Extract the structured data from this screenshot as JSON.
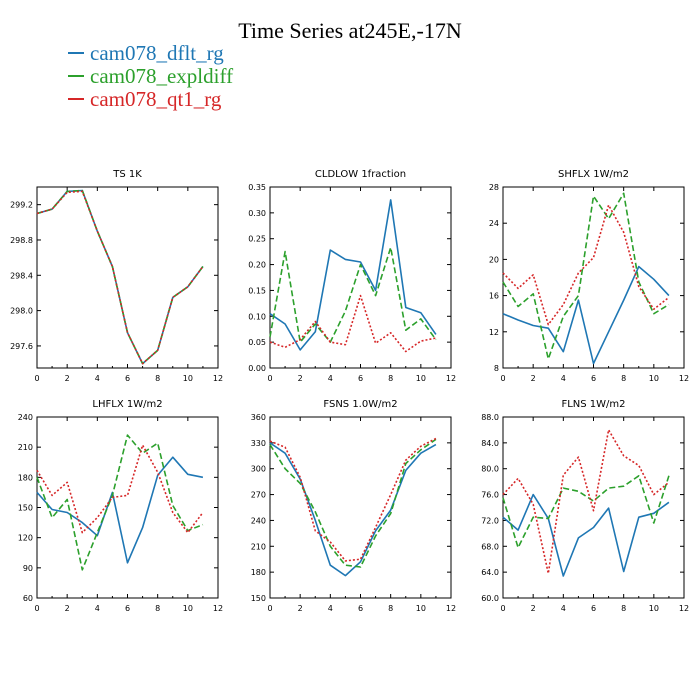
{
  "title": "Time Series at245E,-17N",
  "legend": [
    {
      "name": "cam078_dflt_rg",
      "color": "#1f77b4"
    },
    {
      "name": "cam078_expldiff",
      "color": "#2ca02c"
    },
    {
      "name": "cam078_qt1_rg",
      "color": "#d62728"
    }
  ],
  "chart_data": [
    {
      "type": "line",
      "title": "TS   1K",
      "x": [
        0,
        1,
        2,
        3,
        4,
        5,
        6,
        7,
        8,
        9,
        10,
        11
      ],
      "xlim": [
        0,
        12
      ],
      "xticks": [
        "0",
        "2",
        "4",
        "6",
        "8",
        "10",
        "12"
      ],
      "ylim": [
        297.35,
        299.4
      ],
      "yticks": [
        297.6,
        298.0,
        298.4,
        298.8,
        299.2
      ],
      "ytick_labels": [
        "297.6",
        "298.0",
        "298.4",
        "298.8",
        "299.2"
      ],
      "series": [
        {
          "name": "cam078_dflt_rg",
          "values": [
            299.1,
            299.15,
            299.35,
            299.36,
            298.9,
            298.5,
            297.75,
            297.4,
            297.55,
            298.15,
            298.27,
            298.5
          ]
        },
        {
          "name": "cam078_expldiff",
          "values": [
            299.1,
            299.15,
            299.35,
            299.36,
            298.9,
            298.5,
            297.75,
            297.4,
            297.55,
            298.15,
            298.27,
            298.5
          ]
        },
        {
          "name": "cam078_qt1_rg",
          "values": [
            299.1,
            299.15,
            299.34,
            299.35,
            298.9,
            298.5,
            297.75,
            297.4,
            297.55,
            298.15,
            298.27,
            298.5
          ]
        }
      ]
    },
    {
      "type": "line",
      "title": "CLDLOW   1fraction",
      "x": [
        0,
        1,
        2,
        3,
        4,
        5,
        6,
        7,
        8,
        9,
        10,
        11
      ],
      "xlim": [
        0,
        12
      ],
      "xticks": [
        "0",
        "2",
        "4",
        "6",
        "8",
        "10",
        "12"
      ],
      "ylim": [
        0,
        0.35
      ],
      "yticks": [
        0,
        0.05,
        0.1,
        0.15,
        0.2,
        0.25,
        0.3,
        0.35
      ],
      "ytick_labels": [
        "0.00",
        "0.05",
        "0.10",
        "0.15",
        "0.20",
        "0.25",
        "0.30",
        "0.35"
      ],
      "series": [
        {
          "name": "cam078_dflt_rg",
          "values": [
            0.105,
            0.085,
            0.035,
            0.07,
            0.228,
            0.21,
            0.205,
            0.15,
            0.325,
            0.117,
            0.107,
            0.065
          ]
        },
        {
          "name": "cam078_expldiff",
          "values": [
            0.06,
            0.225,
            0.05,
            0.085,
            0.05,
            0.11,
            0.2,
            0.14,
            0.233,
            0.073,
            0.095,
            0.055
          ]
        },
        {
          "name": "cam078_qt1_rg",
          "values": [
            0.05,
            0.04,
            0.055,
            0.09,
            0.05,
            0.045,
            0.14,
            0.048,
            0.068,
            0.032,
            0.052,
            0.058
          ]
        }
      ]
    },
    {
      "type": "line",
      "title": "SHFLX   1W/m2",
      "x": [
        0,
        1,
        2,
        3,
        4,
        5,
        6,
        7,
        8,
        9,
        10,
        11
      ],
      "xlim": [
        0,
        12
      ],
      "xticks": [
        "0",
        "2",
        "4",
        "6",
        "8",
        "10",
        "12"
      ],
      "ylim": [
        8,
        28
      ],
      "yticks": [
        8,
        12,
        16,
        20,
        24,
        28
      ],
      "ytick_labels": [
        "8",
        "12",
        "16",
        "20",
        "24",
        "28"
      ],
      "series": [
        {
          "name": "cam078_dflt_rg",
          "values": [
            14,
            13.3,
            12.7,
            12.4,
            9.8,
            15.5,
            8.5,
            12,
            15.5,
            19.2,
            17.8,
            16
          ]
        },
        {
          "name": "cam078_expldiff",
          "values": [
            17.5,
            14.8,
            16.2,
            9,
            13.7,
            16,
            27,
            24.5,
            27.3,
            17.5,
            14,
            15
          ]
        },
        {
          "name": "cam078_qt1_rg",
          "values": [
            18.5,
            16.8,
            18.3,
            12.8,
            15,
            18.5,
            20.2,
            26,
            23,
            17,
            14.5,
            15.8
          ]
        }
      ]
    },
    {
      "type": "line",
      "title": "LHFLX   1W/m2",
      "x": [
        0,
        1,
        2,
        3,
        4,
        5,
        6,
        7,
        8,
        9,
        10,
        11
      ],
      "xlim": [
        0,
        12
      ],
      "xticks": [
        "0",
        "2",
        "4",
        "6",
        "8",
        "10",
        "12"
      ],
      "ylim": [
        60,
        240
      ],
      "yticks": [
        60,
        90,
        120,
        150,
        180,
        210,
        240
      ],
      "ytick_labels": [
        "60",
        "90",
        "120",
        "150",
        "180",
        "210",
        "240"
      ],
      "series": [
        {
          "name": "cam078_dflt_rg",
          "values": [
            165,
            148,
            145,
            135,
            122,
            165,
            95,
            130,
            182,
            200,
            183,
            180
          ]
        },
        {
          "name": "cam078_expldiff",
          "values": [
            180,
            140,
            158,
            88,
            125,
            162,
            222,
            204,
            214,
            152,
            127,
            133
          ]
        },
        {
          "name": "cam078_qt1_rg",
          "values": [
            187,
            162,
            175,
            125,
            140,
            160,
            162,
            212,
            185,
            145,
            125,
            145
          ]
        }
      ]
    },
    {
      "type": "line",
      "title": "FSNS   1.0W/m2",
      "x": [
        0,
        1,
        2,
        3,
        4,
        5,
        6,
        7,
        8,
        9,
        10,
        11
      ],
      "xlim": [
        0,
        12
      ],
      "xticks": [
        "0",
        "2",
        "4",
        "6",
        "8",
        "10",
        "12"
      ],
      "ylim": [
        150,
        360
      ],
      "yticks": [
        150,
        180,
        210,
        240,
        270,
        300,
        330,
        360
      ],
      "ytick_labels": [
        "150",
        "180",
        "210",
        "240",
        "270",
        "300",
        "330",
        "360"
      ],
      "series": [
        {
          "name": "cam078_dflt_rg",
          "values": [
            330,
            318,
            288,
            240,
            188,
            176,
            192,
            228,
            252,
            298,
            318,
            328
          ]
        },
        {
          "name": "cam078_expldiff",
          "values": [
            328,
            300,
            283,
            250,
            210,
            188,
            186,
            222,
            248,
            306,
            322,
            334
          ]
        },
        {
          "name": "cam078_qt1_rg",
          "values": [
            332,
            325,
            290,
            228,
            215,
            193,
            195,
            232,
            270,
            310,
            326,
            335
          ]
        }
      ]
    },
    {
      "type": "line",
      "title": "FLNS   1W/m2",
      "x": [
        0,
        1,
        2,
        3,
        4,
        5,
        6,
        7,
        8,
        9,
        10,
        11
      ],
      "xlim": [
        0,
        12
      ],
      "xticks": [
        "0",
        "2",
        "4",
        "6",
        "8",
        "10",
        "12"
      ],
      "ylim": [
        60,
        88
      ],
      "yticks": [
        60,
        64,
        68,
        72,
        76,
        80,
        84,
        88
      ],
      "ytick_labels": [
        "60.0",
        "64.0",
        "68.0",
        "72.0",
        "76.0",
        "80.0",
        "84.0",
        "88.0"
      ],
      "series": [
        {
          "name": "cam078_dflt_rg",
          "values": [
            72.5,
            70.5,
            76,
            72.3,
            63.4,
            69.3,
            70.9,
            73.9,
            64.1,
            72.5,
            73.1,
            74.8
          ]
        },
        {
          "name": "cam078_expldiff",
          "values": [
            75.5,
            67.8,
            72.5,
            72.3,
            77,
            76.5,
            75,
            77,
            77.3,
            78.9,
            71.6,
            78.9
          ]
        },
        {
          "name": "cam078_qt1_rg",
          "values": [
            76,
            78.5,
            74.5,
            63.8,
            79,
            81.8,
            73.5,
            86,
            82,
            80.5,
            76,
            77.9
          ]
        }
      ]
    }
  ]
}
